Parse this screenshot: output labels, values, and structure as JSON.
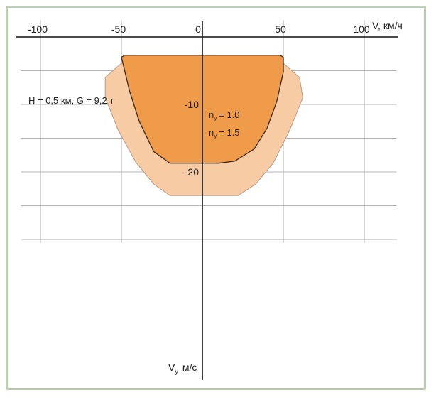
{
  "chart_data": {
    "type": "area",
    "title": "",
    "condition_label": "H = 0,5 км, G = 9,2 т",
    "xlabel": "V, км/ч",
    "ylabel": "V",
    "ylabel_sub": "y",
    "ylabel_unit": "м/с",
    "x_ticks": [
      {
        "value": -100,
        "label": "-100"
      },
      {
        "value": -50,
        "label": "-50"
      },
      {
        "value": 0,
        "label": "0"
      },
      {
        "value": 50,
        "label": "50"
      },
      {
        "value": 100,
        "label": "100"
      }
    ],
    "y_ticks": [
      {
        "value": -10,
        "label": "-10"
      },
      {
        "value": -20,
        "label": "-20"
      }
    ],
    "xlim": [
      -112,
      120
    ],
    "ylim": [
      -30.5,
      2.5
    ],
    "grid": true,
    "series": [
      {
        "name": "n",
        "name_sub": "y",
        "name_value": "= 1.5",
        "color": "#f7cba3",
        "edge_color": "#b99b86",
        "points": [
          [
            -60,
            -6.0
          ],
          [
            -50,
            -3.9
          ],
          [
            50,
            -3.9
          ],
          [
            60,
            -6.0
          ],
          [
            62,
            -9.0
          ],
          [
            54,
            -13.8
          ],
          [
            44,
            -18.6
          ],
          [
            33,
            -21.8
          ],
          [
            22,
            -23.5
          ],
          [
            -20,
            -23.5
          ],
          [
            -30,
            -21.8
          ],
          [
            -41,
            -18.6
          ],
          [
            -52,
            -13.8
          ],
          [
            -60,
            -9.0
          ]
        ]
      },
      {
        "name": "n",
        "name_sub": "y",
        "name_value": "= 1.0",
        "color": "#ef9b4a",
        "edge_color": "#3b2a1c",
        "points": [
          [
            -50,
            -3.0
          ],
          [
            -48,
            -2.7
          ],
          [
            48,
            -2.7
          ],
          [
            50,
            -3.0
          ],
          [
            50,
            -5.2
          ],
          [
            46,
            -9.5
          ],
          [
            40,
            -13.5
          ],
          [
            32,
            -16.6
          ],
          [
            20,
            -18.4
          ],
          [
            10,
            -18.7
          ],
          [
            -20,
            -18.7
          ],
          [
            -30,
            -17.0
          ],
          [
            -39,
            -12.5
          ],
          [
            -45,
            -8.0
          ],
          [
            -49,
            -4.0
          ]
        ]
      }
    ]
  }
}
